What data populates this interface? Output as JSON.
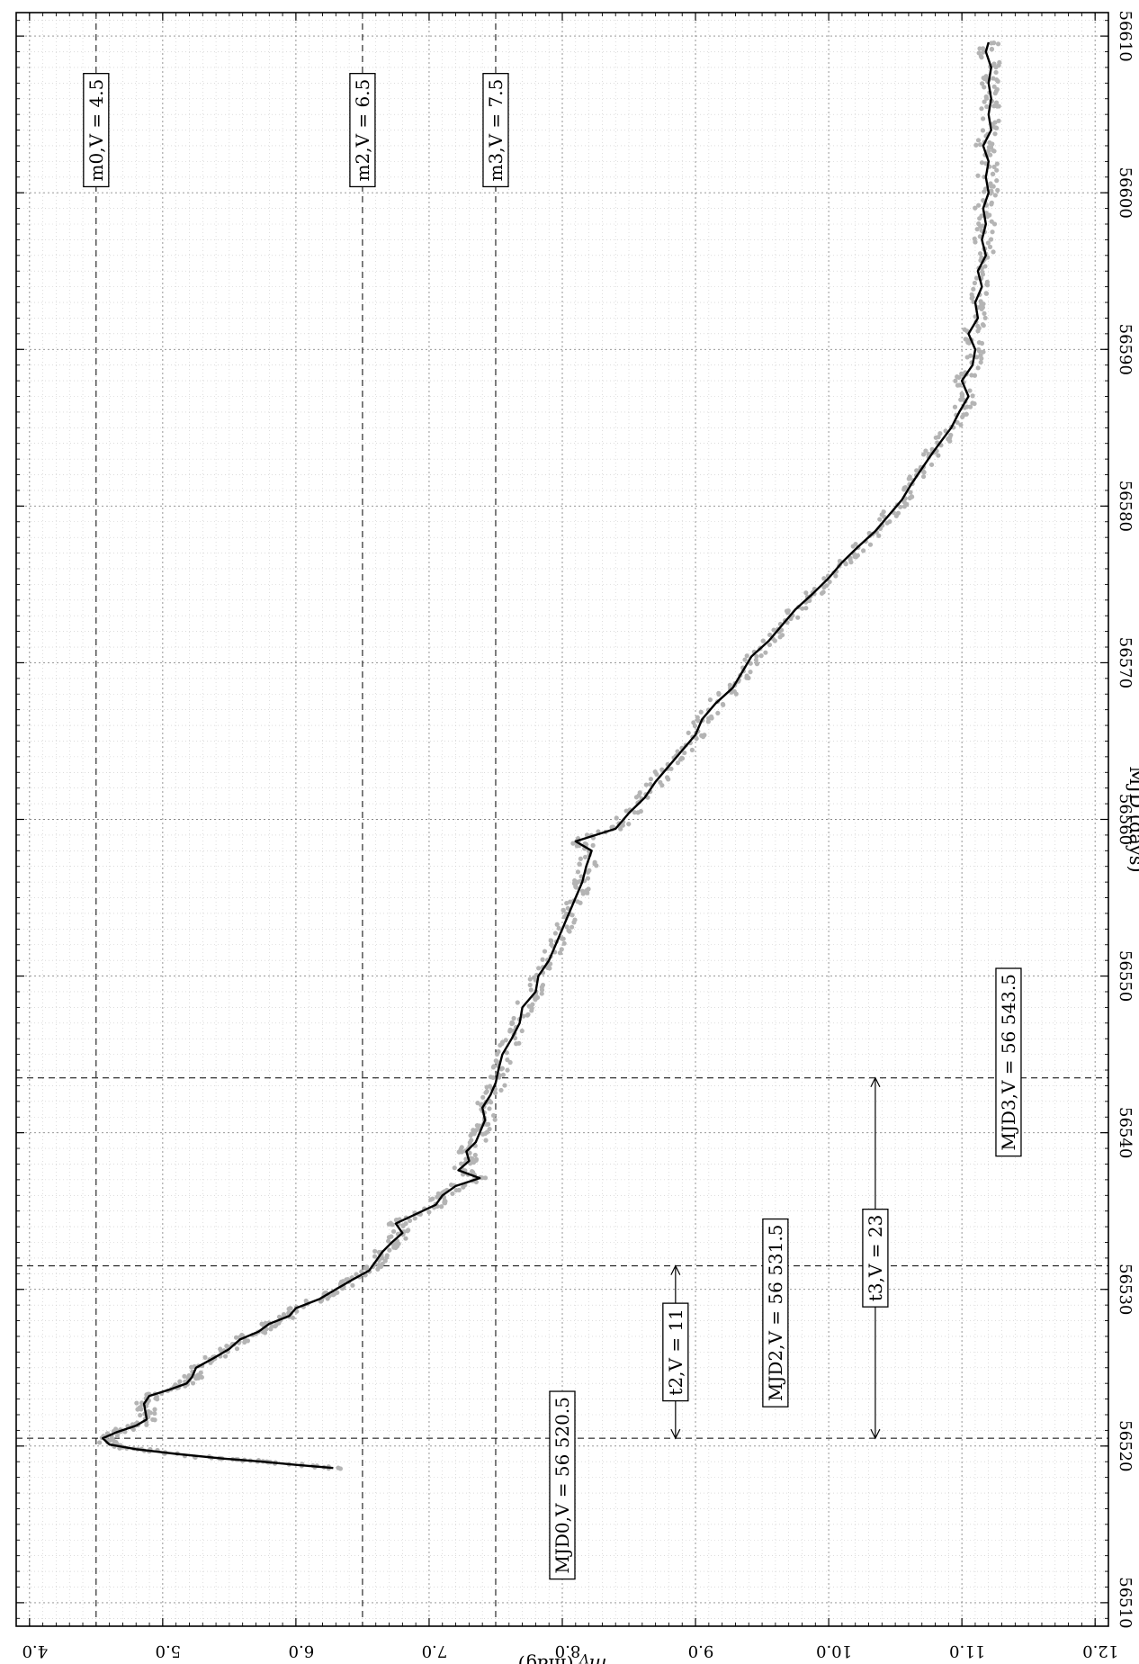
{
  "chart_data": {
    "type": "line",
    "orientation": "rotated-90",
    "xlabel": "MJD (days)",
    "ylabel": "m_V (mag)",
    "xlim": [
      56508.5,
      56611.5
    ],
    "ylim": [
      3.9,
      12.1
    ],
    "x_ticks": [
      56510,
      56520,
      56530,
      56540,
      56550,
      56560,
      56570,
      56580,
      56590,
      56600,
      56610
    ],
    "y_ticks": [
      "4.0",
      "5.0",
      "6.0",
      "7.0",
      "8.0",
      "9.0",
      "10.0",
      "11.0",
      "12.0"
    ],
    "grid": true,
    "series": [
      {
        "style": "black-line",
        "points": [
          [
            56518.6,
            6.28
          ],
          [
            56518.8,
            6.0
          ],
          [
            56519.0,
            5.75
          ],
          [
            56519.2,
            5.45
          ],
          [
            56519.5,
            5.1
          ],
          [
            56519.8,
            4.8
          ],
          [
            56520.1,
            4.6
          ],
          [
            56520.5,
            4.55
          ],
          [
            56520.9,
            4.66
          ],
          [
            56521.3,
            4.8
          ],
          [
            56521.7,
            4.88
          ],
          [
            56522.2,
            4.87
          ],
          [
            56522.7,
            4.86
          ],
          [
            56523.2,
            4.9
          ],
          [
            56523.6,
            5.05
          ],
          [
            56524.0,
            5.18
          ],
          [
            56524.4,
            5.22
          ],
          [
            56525.0,
            5.25
          ],
          [
            56525.6,
            5.38
          ],
          [
            56526.2,
            5.5
          ],
          [
            56526.8,
            5.58
          ],
          [
            56527.3,
            5.72
          ],
          [
            56527.8,
            5.8
          ],
          [
            56528.3,
            5.95
          ],
          [
            56528.8,
            6.0
          ],
          [
            56529.4,
            6.18
          ],
          [
            56530.0,
            6.3
          ],
          [
            56530.6,
            6.42
          ],
          [
            56531.2,
            6.55
          ],
          [
            56531.8,
            6.6
          ],
          [
            56532.4,
            6.65
          ],
          [
            56533.0,
            6.72
          ],
          [
            56533.6,
            6.8
          ],
          [
            56534.2,
            6.75
          ],
          [
            56534.8,
            6.9
          ],
          [
            56535.4,
            7.05
          ],
          [
            56536.0,
            7.1
          ],
          [
            56536.6,
            7.2
          ],
          [
            56537.1,
            7.38
          ],
          [
            56537.6,
            7.22
          ],
          [
            56538.2,
            7.3
          ],
          [
            56538.8,
            7.28
          ],
          [
            56539.4,
            7.35
          ],
          [
            56540.0,
            7.38
          ],
          [
            56540.8,
            7.42
          ],
          [
            56541.6,
            7.4
          ],
          [
            56542.4,
            7.46
          ],
          [
            56543.2,
            7.5
          ],
          [
            56544.0,
            7.52
          ],
          [
            56545.0,
            7.55
          ],
          [
            56546.0,
            7.62
          ],
          [
            56547.0,
            7.68
          ],
          [
            56548.0,
            7.7
          ],
          [
            56549.0,
            7.8
          ],
          [
            56550.0,
            7.82
          ],
          [
            56551.0,
            7.9
          ],
          [
            56552.0,
            7.95
          ],
          [
            56553.0,
            8.0
          ],
          [
            56554.0,
            8.05
          ],
          [
            56555.0,
            8.1
          ],
          [
            56556.0,
            8.15
          ],
          [
            56557.0,
            8.18
          ],
          [
            56558.0,
            8.22
          ],
          [
            56558.6,
            8.1
          ],
          [
            56559.4,
            8.4
          ],
          [
            56560.4,
            8.5
          ],
          [
            56561.4,
            8.62
          ],
          [
            56562.4,
            8.7
          ],
          [
            56563.4,
            8.8
          ],
          [
            56564.4,
            8.9
          ],
          [
            56565.4,
            9.0
          ],
          [
            56566.4,
            9.05
          ],
          [
            56567.4,
            9.15
          ],
          [
            56568.4,
            9.28
          ],
          [
            56569.4,
            9.35
          ],
          [
            56570.4,
            9.42
          ],
          [
            56571.4,
            9.55
          ],
          [
            56572.4,
            9.65
          ],
          [
            56573.4,
            9.75
          ],
          [
            56574.4,
            9.88
          ],
          [
            56575.4,
            10.0
          ],
          [
            56576.4,
            10.1
          ],
          [
            56577.4,
            10.22
          ],
          [
            56578.4,
            10.35
          ],
          [
            56579.4,
            10.45
          ],
          [
            56580.4,
            10.55
          ],
          [
            56581.4,
            10.62
          ],
          [
            56582.4,
            10.7
          ],
          [
            56583.4,
            10.78
          ],
          [
            56584.2,
            10.85
          ],
          [
            56585.0,
            10.92
          ],
          [
            56586.0,
            10.98
          ],
          [
            56587.0,
            11.05
          ],
          [
            56588.0,
            11.0
          ],
          [
            56589.0,
            11.08
          ],
          [
            56590.0,
            11.1
          ],
          [
            56591.0,
            11.05
          ],
          [
            56592.0,
            11.12
          ],
          [
            56593.0,
            11.1
          ],
          [
            56594.0,
            11.15
          ],
          [
            56595.0,
            11.12
          ],
          [
            56596.0,
            11.18
          ],
          [
            56597.0,
            11.15
          ],
          [
            56598.0,
            11.18
          ],
          [
            56599.0,
            11.16
          ],
          [
            56600.0,
            11.2
          ],
          [
            56601.0,
            11.18
          ],
          [
            56602.0,
            11.2
          ],
          [
            56603.0,
            11.16
          ],
          [
            56604.0,
            11.22
          ],
          [
            56605.0,
            11.2
          ],
          [
            56606.0,
            11.22
          ],
          [
            56607.0,
            11.2
          ],
          [
            56608.0,
            11.22
          ],
          [
            56609.0,
            11.18
          ],
          [
            56609.6,
            11.2
          ]
        ]
      },
      {
        "style": "grey-points",
        "points": "scattered observations along the black curve, 56518.5-56610"
      }
    ],
    "reference_lines": {
      "horizontal": [
        4.5,
        6.5,
        7.5
      ],
      "vertical": [
        56520.5,
        56531.5,
        56543.5
      ]
    },
    "annotations": {
      "m0_label": "m0,V = 4.5",
      "m2_label": "m2,V = 6.5",
      "m3_label": "m3,V = 7.5",
      "mjd0_label": "MJD0,V = 56 520.5",
      "mjd2_label": "MJD2,V = 56 531.5",
      "mjd3_label": "MJD3,V = 56 543.5",
      "t2_label": "t2,V = 11",
      "t3_label": "t3,V = 23"
    },
    "intervals": {
      "t2": [
        56520.5,
        56531.5
      ],
      "t3": [
        56520.5,
        56543.5
      ]
    }
  }
}
